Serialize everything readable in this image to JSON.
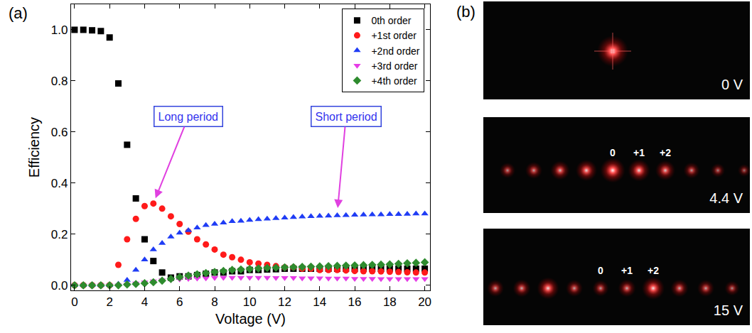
{
  "chart_data": {
    "type": "scatter",
    "panel_label": "(a)",
    "x_label": "Voltage (V)",
    "y_label": "Efficiency",
    "x": [
      0,
      0.5,
      1,
      1.5,
      2,
      2.5,
      3,
      3.5,
      4,
      4.5,
      5,
      5.5,
      6,
      6.5,
      7,
      7.5,
      8,
      8.5,
      9,
      9.5,
      10,
      10.5,
      11,
      11.5,
      12,
      12.5,
      13,
      13.5,
      14,
      14.5,
      15,
      15.5,
      16,
      16.5,
      17,
      17.5,
      18,
      18.5,
      19,
      19.5,
      20
    ],
    "series": [
      {
        "name": "0th order",
        "color": "#000000",
        "marker": "square",
        "values": [
          1.0,
          1.0,
          0.998,
          0.995,
          0.97,
          0.79,
          0.55,
          0.34,
          0.18,
          0.095,
          0.05,
          0.03,
          0.035,
          0.035,
          0.04,
          0.045,
          0.05,
          0.05,
          0.055,
          0.055,
          0.06,
          0.06,
          0.062,
          0.063,
          0.065,
          0.065,
          0.065,
          0.065,
          0.065,
          0.065,
          0.065,
          0.065,
          0.065,
          0.065,
          0.065,
          0.065,
          0.065,
          0.065,
          0.065,
          0.065,
          0.065
        ]
      },
      {
        "name": "+1st order",
        "color": "#ff1a1a",
        "marker": "circle",
        "values": [
          0,
          0,
          0,
          0,
          0,
          0.08,
          0.18,
          0.26,
          0.31,
          0.32,
          0.3,
          0.27,
          0.24,
          0.21,
          0.18,
          0.16,
          0.14,
          0.12,
          0.11,
          0.1,
          0.09,
          0.085,
          0.08,
          0.075,
          0.07,
          0.07,
          0.065,
          0.065,
          0.06,
          0.06,
          0.06,
          0.058,
          0.056,
          0.055,
          0.055,
          0.054,
          0.053,
          0.052,
          0.051,
          0.05,
          0.05
        ]
      },
      {
        "name": "+2nd order",
        "color": "#1f3cf5",
        "marker": "triangle-up",
        "values": [
          0,
          0,
          0,
          0,
          0,
          0.005,
          0.02,
          0.06,
          0.1,
          0.14,
          0.165,
          0.19,
          0.205,
          0.215,
          0.225,
          0.235,
          0.24,
          0.245,
          0.25,
          0.252,
          0.255,
          0.258,
          0.26,
          0.262,
          0.264,
          0.266,
          0.268,
          0.27,
          0.271,
          0.272,
          0.273,
          0.274,
          0.275,
          0.276,
          0.277,
          0.277,
          0.278,
          0.278,
          0.279,
          0.28,
          0.28
        ]
      },
      {
        "name": "+3rd order",
        "color": "#e63ce6",
        "marker": "triangle-down",
        "values": [
          0,
          0,
          0,
          0,
          0,
          0,
          0.003,
          0.008,
          0.012,
          0.016,
          0.02,
          0.022,
          0.024,
          0.026,
          0.027,
          0.028,
          0.029,
          0.03,
          0.03,
          0.03,
          0.03,
          0.03,
          0.03,
          0.029,
          0.029,
          0.029,
          0.028,
          0.028,
          0.028,
          0.027,
          0.027,
          0.027,
          0.026,
          0.026,
          0.026,
          0.025,
          0.025,
          0.025,
          0.025,
          0.025,
          0.025
        ]
      },
      {
        "name": "+4th order",
        "color": "#2e8b2e",
        "marker": "diamond",
        "values": [
          0,
          0,
          0,
          0,
          0,
          0,
          0.003,
          0.005,
          0.008,
          0.012,
          0.018,
          0.025,
          0.032,
          0.038,
          0.043,
          0.048,
          0.052,
          0.056,
          0.06,
          0.062,
          0.064,
          0.066,
          0.068,
          0.069,
          0.07,
          0.071,
          0.072,
          0.073,
          0.074,
          0.075,
          0.076,
          0.077,
          0.078,
          0.079,
          0.08,
          0.081,
          0.082,
          0.084,
          0.086,
          0.088,
          0.09
        ]
      }
    ],
    "xlim": [
      -0.2,
      20.3
    ],
    "xticks": [
      0,
      2,
      4,
      6,
      8,
      10,
      12,
      14,
      16,
      18,
      20
    ],
    "ylim": [
      -0.02,
      1.1
    ],
    "yticks": [
      {
        "value": 0,
        "label": "0.0"
      },
      {
        "value": 0.2,
        "label": "0.2"
      },
      {
        "value": 0.4,
        "label": "0.4"
      },
      {
        "value": 0.6,
        "label": "0.6"
      },
      {
        "value": 0.8,
        "label": "0.8"
      },
      {
        "value": 1.0,
        "label": "1.0"
      }
    ],
    "grid": false,
    "legend": "upper right",
    "annotations": [
      {
        "text": "Long period",
        "x": 4.5,
        "y": 0.32
      },
      {
        "text": "Short period",
        "x": 15,
        "y": 0.28
      }
    ]
  },
  "photos": {
    "panel_label": "(b)",
    "images": [
      {
        "label": "0 V",
        "order_labels": []
      },
      {
        "label": "4.4 V",
        "order_labels": [
          "0",
          "+1",
          "+2"
        ]
      },
      {
        "label": "15 V",
        "order_labels": [
          "0",
          "+1",
          "+2"
        ]
      }
    ]
  }
}
